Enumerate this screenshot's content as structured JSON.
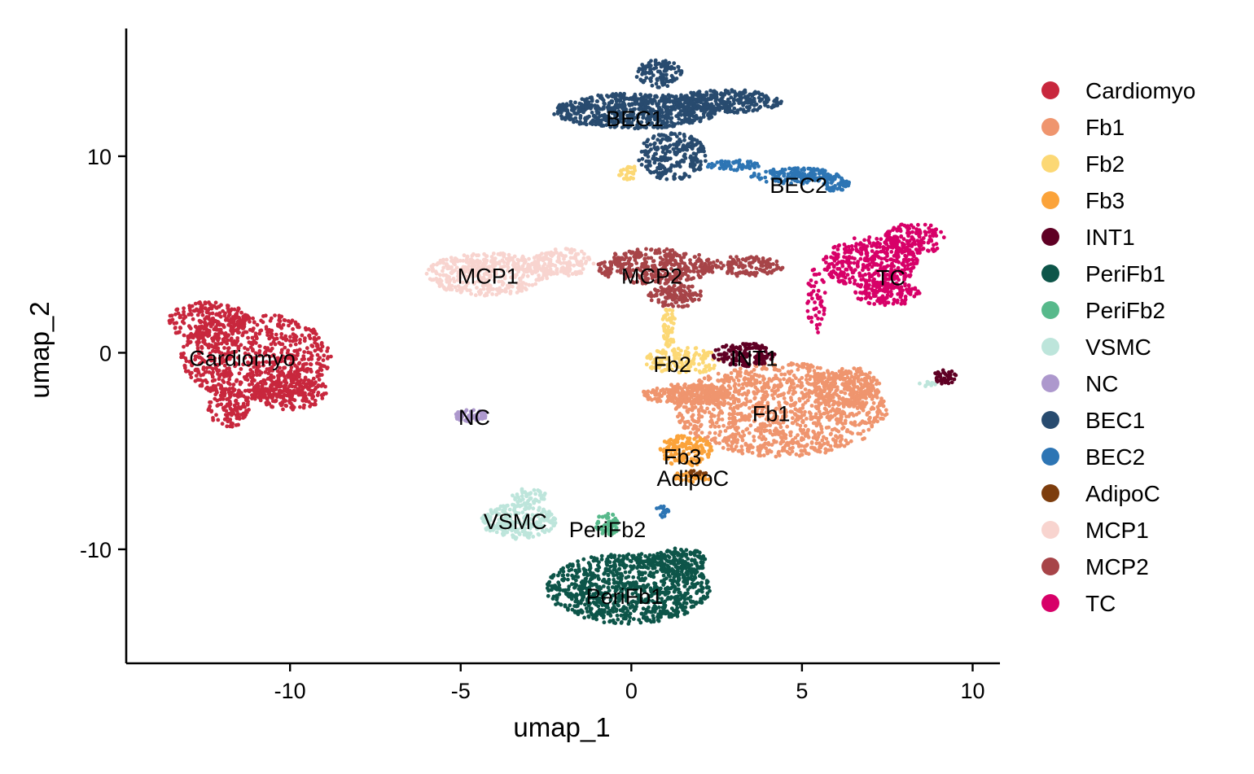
{
  "chart_data": {
    "type": "scatter",
    "xlabel": "umap_1",
    "ylabel": "umap_2",
    "xlim": [
      -14.8,
      10.8
    ],
    "ylim": [
      -15.8,
      16.5
    ],
    "x_ticks": [
      -10,
      -5,
      0,
      5,
      10
    ],
    "x_tick_labels": [
      "-10",
      "-5",
      "0",
      "5",
      "10"
    ],
    "y_ticks": [
      10,
      0,
      -10
    ],
    "y_tick_labels": [
      "10",
      "0",
      "-10"
    ],
    "grid": false,
    "legend_position": "right",
    "series": [
      {
        "name": "Cardiomyo",
        "color": "#C8273D",
        "label": "Cardiomyo",
        "label_at": [
          -11.4,
          -0.3
        ],
        "blobs": [
          {
            "cx": -11.0,
            "cy": -0.2,
            "rx": 2.2,
            "ry": 2.2,
            "n": 700
          },
          {
            "cx": -12.4,
            "cy": 1.6,
            "rx": 1.2,
            "ry": 1.0,
            "n": 240
          },
          {
            "cx": -10.0,
            "cy": -2.0,
            "rx": 1.1,
            "ry": 0.9,
            "n": 220
          },
          {
            "cx": -11.8,
            "cy": -2.8,
            "rx": 0.6,
            "ry": 1.0,
            "n": 120
          }
        ]
      },
      {
        "name": "Fb1",
        "color": "#EF956E",
        "label": "Fb1",
        "label_at": [
          4.1,
          -3.1
        ],
        "blobs": [
          {
            "cx": 4.4,
            "cy": -2.9,
            "rx": 3.1,
            "ry": 2.4,
            "n": 1200
          },
          {
            "cx": 1.6,
            "cy": -2.1,
            "rx": 1.3,
            "ry": 0.5,
            "n": 260
          },
          {
            "cx": 6.3,
            "cy": -1.7,
            "rx": 1.0,
            "ry": 1.0,
            "n": 200
          }
        ]
      },
      {
        "name": "Fb2",
        "color": "#FCD875",
        "label": "Fb2",
        "label_at": [
          1.2,
          -0.6
        ],
        "blobs": [
          {
            "cx": 1.5,
            "cy": -0.4,
            "rx": 1.1,
            "ry": 0.7,
            "n": 160
          },
          {
            "cx": 1.1,
            "cy": 1.3,
            "rx": 0.2,
            "ry": 1.0,
            "n": 60
          },
          {
            "cx": -0.1,
            "cy": 9.2,
            "rx": 0.3,
            "ry": 0.4,
            "n": 30
          }
        ]
      },
      {
        "name": "Fb3",
        "color": "#FBA33A",
        "label": "Fb3",
        "label_at": [
          1.5,
          -5.3
        ],
        "blobs": [
          {
            "cx": 1.6,
            "cy": -5.0,
            "rx": 0.8,
            "ry": 0.8,
            "n": 150
          },
          {
            "cx": 1.8,
            "cy": -6.3,
            "rx": 0.6,
            "ry": 0.3,
            "n": 40
          }
        ]
      },
      {
        "name": "INT1",
        "color": "#5F0024",
        "label": "INT1",
        "label_at": [
          3.6,
          -0.3
        ],
        "blobs": [
          {
            "cx": 3.3,
            "cy": -0.1,
            "rx": 0.9,
            "ry": 0.6,
            "n": 140
          },
          {
            "cx": 9.2,
            "cy": -1.2,
            "rx": 0.35,
            "ry": 0.4,
            "n": 45
          }
        ]
      },
      {
        "name": "PeriFb1",
        "color": "#0D5549",
        "label": "PeriFb1",
        "label_at": [
          -0.2,
          -12.4
        ],
        "blobs": [
          {
            "cx": -0.1,
            "cy": -12.0,
            "rx": 2.4,
            "ry": 1.8,
            "n": 900
          },
          {
            "cx": 1.4,
            "cy": -10.6,
            "rx": 0.8,
            "ry": 0.7,
            "n": 150
          }
        ]
      },
      {
        "name": "PeriFb2",
        "color": "#57B98B",
        "label": "PeriFb2",
        "label_at": [
          -0.7,
          -9.0
        ],
        "blobs": [
          {
            "cx": -0.7,
            "cy": -8.7,
            "rx": 0.35,
            "ry": 0.6,
            "n": 60
          }
        ]
      },
      {
        "name": "VSMC",
        "color": "#BDE5DB",
        "label": "VSMC",
        "label_at": [
          -3.4,
          -8.6
        ],
        "blobs": [
          {
            "cx": -3.3,
            "cy": -8.6,
            "rx": 1.1,
            "ry": 0.9,
            "n": 240
          },
          {
            "cx": -3.0,
            "cy": -7.3,
            "rx": 0.5,
            "ry": 0.4,
            "n": 50
          },
          {
            "cx": 8.7,
            "cy": -1.6,
            "rx": 0.3,
            "ry": 0.15,
            "n": 12
          }
        ]
      },
      {
        "name": "NC",
        "color": "#AD98CD",
        "label": "NC",
        "label_at": [
          -4.6,
          -3.3
        ],
        "blobs": [
          {
            "cx": -4.7,
            "cy": -3.2,
            "rx": 0.5,
            "ry": 0.3,
            "n": 60
          }
        ]
      },
      {
        "name": "BEC1",
        "color": "#284B6F",
        "label": "BEC1",
        "label_at": [
          0.1,
          11.9
        ],
        "blobs": [
          {
            "cx": 0.1,
            "cy": 12.3,
            "rx": 2.4,
            "ry": 0.9,
            "n": 700
          },
          {
            "cx": 2.8,
            "cy": 12.8,
            "rx": 1.6,
            "ry": 0.6,
            "n": 280
          },
          {
            "cx": 1.2,
            "cy": 10.0,
            "rx": 1.0,
            "ry": 1.2,
            "n": 240
          },
          {
            "cx": 0.8,
            "cy": 14.2,
            "rx": 0.7,
            "ry": 0.7,
            "n": 110
          }
        ]
      },
      {
        "name": "BEC2",
        "color": "#2D75B4",
        "label": "BEC2",
        "label_at": [
          4.9,
          8.5
        ],
        "blobs": [
          {
            "cx": 4.8,
            "cy": 9.0,
            "rx": 1.3,
            "ry": 0.4,
            "n": 170
          },
          {
            "cx": 6.0,
            "cy": 8.6,
            "rx": 0.4,
            "ry": 0.4,
            "n": 50
          },
          {
            "cx": 3.0,
            "cy": 9.5,
            "rx": 0.8,
            "ry": 0.3,
            "n": 60
          },
          {
            "cx": 0.9,
            "cy": -8.1,
            "rx": 0.2,
            "ry": 0.3,
            "n": 15
          }
        ]
      },
      {
        "name": "AdipoC",
        "color": "#7D3D0D",
        "label": "AdipoC",
        "label_at": [
          1.8,
          -6.4
        ],
        "blobs": [
          {
            "cx": 1.9,
            "cy": -6.1,
            "rx": 0.3,
            "ry": 0.15,
            "n": 14
          }
        ]
      },
      {
        "name": "MCP1",
        "color": "#F8D4CF",
        "label": "MCP1",
        "label_at": [
          -4.2,
          3.9
        ],
        "blobs": [
          {
            "cx": -4.2,
            "cy": 4.0,
            "rx": 1.8,
            "ry": 1.1,
            "n": 420
          },
          {
            "cx": -2.0,
            "cy": 4.6,
            "rx": 0.9,
            "ry": 0.7,
            "n": 160
          }
        ]
      },
      {
        "name": "MCP2",
        "color": "#A74448",
        "label": "MCP2",
        "label_at": [
          0.6,
          3.9
        ],
        "blobs": [
          {
            "cx": 0.7,
            "cy": 4.4,
            "rx": 1.7,
            "ry": 0.9,
            "n": 360
          },
          {
            "cx": 1.3,
            "cy": 2.9,
            "rx": 0.8,
            "ry": 0.6,
            "n": 120
          },
          {
            "cx": 3.3,
            "cy": 4.4,
            "rx": 1.2,
            "ry": 0.5,
            "n": 120
          }
        ]
      },
      {
        "name": "TC",
        "color": "#D70068",
        "label": "TC",
        "label_at": [
          7.6,
          3.8
        ],
        "blobs": [
          {
            "cx": 7.0,
            "cy": 4.6,
            "rx": 1.4,
            "ry": 1.3,
            "n": 380
          },
          {
            "cx": 8.3,
            "cy": 5.8,
            "rx": 0.9,
            "ry": 0.8,
            "n": 160
          },
          {
            "cx": 7.5,
            "cy": 3.0,
            "rx": 1.0,
            "ry": 0.6,
            "n": 130
          },
          {
            "cx": 5.4,
            "cy": 2.6,
            "rx": 0.3,
            "ry": 1.7,
            "n": 50
          }
        ]
      }
    ]
  }
}
